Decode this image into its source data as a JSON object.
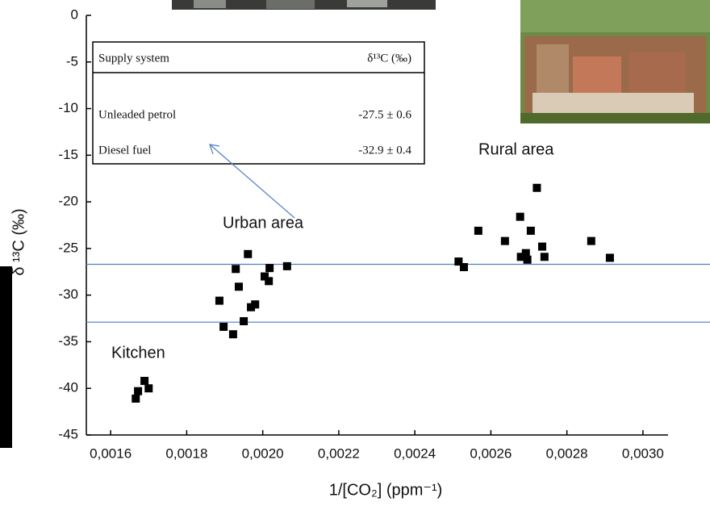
{
  "chart_data": {
    "type": "scatter",
    "xlabel": "1/[CO₂] (ppm⁻¹)",
    "ylabel": "δ ¹³C (‰)",
    "x": [
      0.001666,
      0.001672,
      0.001689,
      0.0017,
      0.001886,
      0.001897,
      0.001922,
      0.001929,
      0.001937,
      0.00195,
      0.001961,
      0.001969,
      0.00198,
      0.002005,
      0.002016,
      0.002018,
      0.002064,
      0.002515,
      0.002529,
      0.002567,
      0.002637,
      0.002677,
      0.002679,
      0.002692,
      0.002696,
      0.002705,
      0.002721,
      0.002735,
      0.002741,
      0.002864,
      0.002913
    ],
    "values": [
      -41.1,
      -40.3,
      -39.2,
      -40.0,
      -30.6,
      -33.4,
      -34.2,
      -27.2,
      -29.1,
      -32.8,
      -25.6,
      -31.3,
      -31.0,
      -28.0,
      -28.5,
      -27.1,
      -26.9,
      -26.4,
      -27.0,
      -23.1,
      -24.2,
      -21.6,
      -25.9,
      -25.5,
      -26.2,
      -23.1,
      -18.5,
      -24.8,
      -25.9,
      -24.2,
      -26.0
    ],
    "color": "#000000",
    "xlim": [
      0.001536,
      0.003066
    ],
    "ylim": [
      -45,
      0
    ],
    "xticks": [
      {
        "value": 0.0016,
        "label": "0,0016"
      },
      {
        "value": 0.0018,
        "label": "0,0018"
      },
      {
        "value": 0.002,
        "label": "0,0020"
      },
      {
        "value": 0.0022,
        "label": "0,0022"
      },
      {
        "value": 0.0024,
        "label": "0,0024"
      },
      {
        "value": 0.0026,
        "label": "0,0026"
      },
      {
        "value": 0.0028,
        "label": "0,0028"
      },
      {
        "value": 0.003,
        "label": "0,0030"
      }
    ],
    "yticks": [
      -45,
      -40,
      -35,
      -30,
      -25,
      -20,
      -15,
      -10,
      -5,
      0
    ],
    "reference_lines": [
      -26.7,
      -32.9
    ],
    "reference_color": "#4f7fc6",
    "annotations": [
      "Kitchen",
      "Urban area",
      "Rural area"
    ],
    "inset_table": {
      "header": [
        "Supply system",
        "δ¹³C (‰)"
      ],
      "rows": [
        [
          "Unleaded petrol",
          "-27.5 ± 0.6"
        ],
        [
          "Diesel fuel",
          "-32.9 ± 0.4"
        ]
      ]
    }
  }
}
